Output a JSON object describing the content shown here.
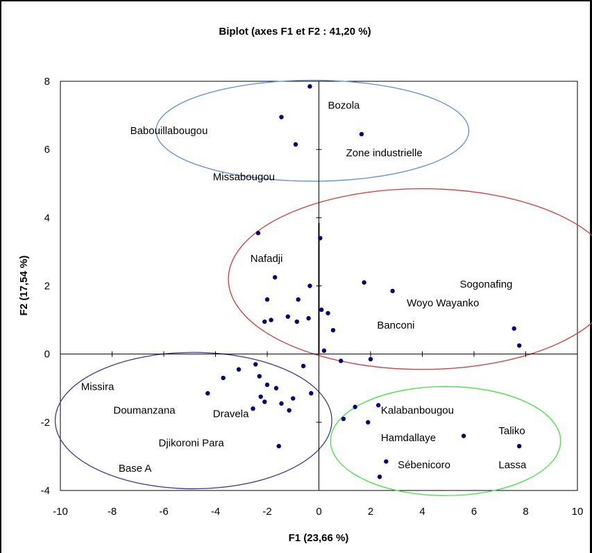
{
  "chart_data": {
    "type": "scatter",
    "title": "Biplot (axes F1 et F2 : 41,20 %)",
    "xlabel": "F1 (23,66 %)",
    "ylabel": "F2 (17,54 %)",
    "xlim": [
      -10,
      10
    ],
    "ylim": [
      -4,
      8
    ],
    "xticks": [
      "-10",
      "-8",
      "-6",
      "-4",
      "-2",
      "0",
      "2",
      "4",
      "6",
      "8",
      "10"
    ],
    "yticks": [
      "-4",
      "-2",
      "0",
      "2",
      "4",
      "6",
      "8"
    ],
    "point_color": "#000080",
    "points": [
      {
        "x": -0.35,
        "y": 7.85
      },
      {
        "x": -1.45,
        "y": 6.95
      },
      {
        "x": -0.9,
        "y": 6.15
      },
      {
        "x": 1.65,
        "y": 6.45
      },
      {
        "x": -2.35,
        "y": 3.55
      },
      {
        "x": 0.05,
        "y": 3.4
      },
      {
        "x": -1.7,
        "y": 2.25
      },
      {
        "x": -0.35,
        "y": 2.0
      },
      {
        "x": 1.75,
        "y": 2.1
      },
      {
        "x": 2.85,
        "y": 1.85
      },
      {
        "x": -2.0,
        "y": 1.6
      },
      {
        "x": -0.8,
        "y": 1.6
      },
      {
        "x": -1.2,
        "y": 1.1
      },
      {
        "x": -0.4,
        "y": 1.05
      },
      {
        "x": -1.85,
        "y": 1.0
      },
      {
        "x": -2.1,
        "y": 0.95
      },
      {
        "x": -0.85,
        "y": 0.95
      },
      {
        "x": 0.1,
        "y": 1.3
      },
      {
        "x": 0.35,
        "y": 1.2
      },
      {
        "x": 0.55,
        "y": 0.7
      },
      {
        "x": 0.2,
        "y": 0.1
      },
      {
        "x": 7.55,
        "y": 0.75
      },
      {
        "x": 7.75,
        "y": 0.25
      },
      {
        "x": 0.85,
        "y": -0.2
      },
      {
        "x": 2.0,
        "y": -0.15
      },
      {
        "x": -2.45,
        "y": -0.3
      },
      {
        "x": -0.6,
        "y": -0.35
      },
      {
        "x": -3.1,
        "y": -0.45
      },
      {
        "x": -2.3,
        "y": -0.65
      },
      {
        "x": -3.7,
        "y": -0.7
      },
      {
        "x": -2.0,
        "y": -0.9
      },
      {
        "x": -1.65,
        "y": -1.0
      },
      {
        "x": -4.3,
        "y": -1.15
      },
      {
        "x": -2.25,
        "y": -1.25
      },
      {
        "x": -0.3,
        "y": -1.15
      },
      {
        "x": -2.1,
        "y": -1.4
      },
      {
        "x": -1.0,
        "y": -1.3
      },
      {
        "x": -1.45,
        "y": -1.45
      },
      {
        "x": -2.55,
        "y": -1.6
      },
      {
        "x": -1.15,
        "y": -1.65
      },
      {
        "x": 1.4,
        "y": -1.55
      },
      {
        "x": 2.3,
        "y": -1.5
      },
      {
        "x": 0.95,
        "y": -1.9
      },
      {
        "x": 1.9,
        "y": -2.0
      },
      {
        "x": 5.6,
        "y": -2.4
      },
      {
        "x": 7.75,
        "y": -2.7
      },
      {
        "x": -1.55,
        "y": -2.7
      },
      {
        "x": 2.6,
        "y": -3.15
      },
      {
        "x": 2.35,
        "y": -3.6
      }
    ],
    "labels": [
      {
        "text": "Bozola",
        "x": 0.35,
        "y": 7.3
      },
      {
        "text": "Babouillabougou",
        "x": -7.3,
        "y": 6.55
      },
      {
        "text": "Zone industrielle",
        "x": 1.05,
        "y": 5.9
      },
      {
        "text": "Missabougou",
        "x": -4.1,
        "y": 5.2
      },
      {
        "text": "Nafadji",
        "x": -2.65,
        "y": 2.8
      },
      {
        "text": "Sogonafing",
        "x": 5.45,
        "y": 2.05
      },
      {
        "text": "Woyo Wayanko",
        "x": 3.4,
        "y": 1.5
      },
      {
        "text": "Banconi",
        "x": 2.25,
        "y": 0.85
      },
      {
        "text": "Missira",
        "x": -9.2,
        "y": -0.95
      },
      {
        "text": "Doumanzana",
        "x": -7.95,
        "y": -1.65
      },
      {
        "text": "Dravela",
        "x": -4.1,
        "y": -1.75
      },
      {
        "text": "Kalabanbougou",
        "x": 2.4,
        "y": -1.65
      },
      {
        "text": "Taliko",
        "x": 6.95,
        "y": -2.25
      },
      {
        "text": "Hamdallaye",
        "x": 2.4,
        "y": -2.45
      },
      {
        "text": "Djikoroni Para",
        "x": -6.2,
        "y": -2.6
      },
      {
        "text": "Base A",
        "x": -7.75,
        "y": -3.35
      },
      {
        "text": "Sébenicoro",
        "x": 3.05,
        "y": -3.25
      },
      {
        "text": "Lassa",
        "x": 6.95,
        "y": -3.25
      }
    ],
    "ellipses": [
      {
        "color": "#5b8de6",
        "cx": -0.25,
        "cy": 6.55,
        "rx": 6.05,
        "ry": 1.48
      },
      {
        "color": "#e03434",
        "cx": 4.0,
        "cy": 2.2,
        "rx": 7.5,
        "ry": 2.65
      },
      {
        "color": "#37378f",
        "cx": -4.85,
        "cy": -1.95,
        "rx": 5.35,
        "ry": 2.0
      },
      {
        "color": "#3ee63e",
        "cx": 4.9,
        "cy": -2.55,
        "rx": 4.45,
        "ry": 1.6
      }
    ]
  }
}
